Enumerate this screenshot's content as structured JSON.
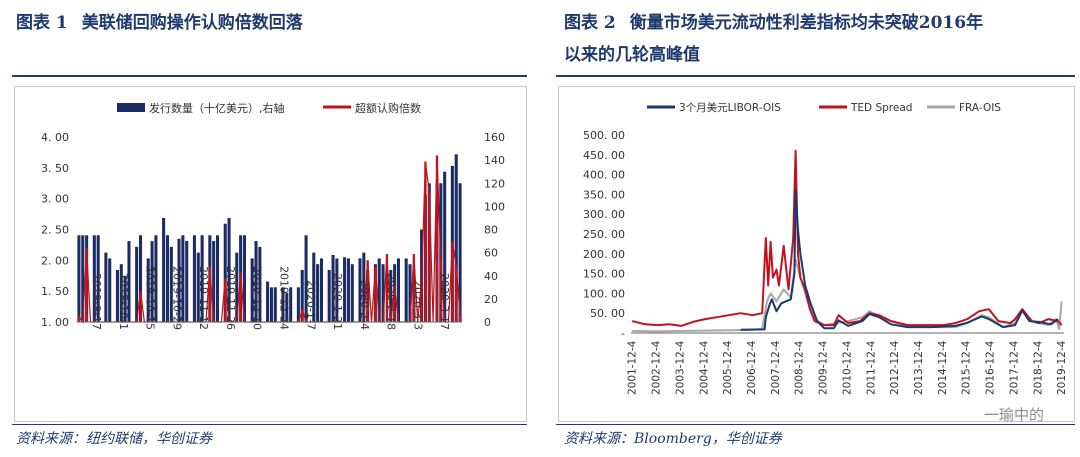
{
  "left": {
    "title_num": "图表 1",
    "title_text": "美联储回购操作认购倍数回落",
    "source": "资料来源：纽约联储，华创证券",
    "chart_data": {
      "type": "bar",
      "title": "",
      "legend": [
        "发行数量（十亿美元）,右轴",
        "超额认购倍数"
      ],
      "legend_position": "top",
      "colors": {
        "issuance": "#1b2b64",
        "ratio": "#c0141c"
      },
      "y_left": {
        "min": 1.0,
        "max": 4.0,
        "ticks": [
          "1. 00",
          "1. 50",
          "2. 00",
          "2. 50",
          "3. 00",
          "3. 50",
          "4. 00"
        ]
      },
      "y_right": {
        "min": 0,
        "max": 160,
        "ticks": [
          "0",
          "20",
          "40",
          "60",
          "80",
          "100",
          "120",
          "140",
          "160"
        ]
      },
      "x_tick_labels": [
        "2019-9-17",
        "2019-10-1",
        "2019-10-15",
        "2019-10-29",
        "2019-11-12",
        "2019-11-26",
        "2019-12-10",
        "2019-12-24",
        "2020-1-7",
        "2020-1-21",
        "2020-2-4",
        "2020-2-18",
        "2020-3-3",
        "2020-3-17"
      ],
      "series": [
        {
          "name": "发行数量（十亿美元）,右轴",
          "axis": "right",
          "values": [
            75,
            75,
            75,
            0,
            75,
            75,
            0,
            60,
            55,
            0,
            45,
            50,
            40,
            70,
            0,
            65,
            75,
            0,
            55,
            70,
            75,
            0,
            90,
            75,
            65,
            0,
            72,
            75,
            70,
            0,
            75,
            60,
            75,
            0,
            75,
            70,
            75,
            0,
            85,
            90,
            0,
            60,
            75,
            75,
            0,
            55,
            70,
            65,
            0,
            35,
            30,
            30,
            0,
            30,
            25,
            30,
            0,
            30,
            45,
            75,
            0,
            60,
            50,
            55,
            0,
            45,
            58,
            55,
            0,
            56,
            55,
            50,
            0,
            55,
            60,
            45,
            0,
            50,
            55,
            50,
            0,
            45,
            50,
            55,
            0,
            55,
            50,
            45,
            0,
            80,
            110,
            120,
            0,
            120,
            120,
            130,
            0,
            135,
            145,
            120
          ]
        },
        {
          "name": "超额认购倍数",
          "axis": "left",
          "values": [
            1.1,
            1.0,
            2.2,
            1.0,
            1.0,
            1.0,
            1.0,
            1.0,
            1.0,
            1.0,
            1.0,
            1.0,
            1.0,
            1.0,
            1.0,
            1.0,
            1.5,
            1.0,
            1.0,
            1.0,
            1.0,
            1.0,
            1.0,
            1.0,
            1.0,
            1.0,
            1.0,
            1.0,
            1.0,
            1.0,
            1.0,
            1.0,
            1.0,
            1.0,
            1.9,
            1.0,
            1.0,
            1.0,
            1.7,
            1.0,
            1.0,
            1.0,
            1.8,
            1.0,
            1.0,
            1.0,
            1.0,
            1.0,
            1.0,
            1.0,
            1.0,
            1.0,
            1.0,
            1.0,
            1.0,
            1.0,
            1.0,
            1.0,
            1.2,
            1.0,
            1.0,
            1.0,
            1.0,
            1.0,
            1.0,
            1.0,
            1.0,
            1.0,
            1.0,
            1.0,
            1.0,
            1.0,
            1.0,
            1.0,
            1.0,
            2.0,
            1.0,
            1.9,
            1.0,
            1.0,
            2.1,
            1.0,
            1.6,
            1.0,
            1.0,
            1.0,
            1.0,
            2.1,
            1.0,
            1.7,
            3.6,
            3.1,
            1.0,
            3.7,
            2.0,
            1.0,
            1.0,
            2.3,
            1.9,
            1.1
          ]
        }
      ]
    }
  },
  "right": {
    "title_num": "图表 2",
    "title_line1": "衡量市场美元流动性利差指标均未突破2016年",
    "title_line2": "以来的几轮高峰值",
    "source": "资料来源：Bloomberg，华创证券",
    "watermark": "一瑜中的",
    "chart_data": {
      "type": "line",
      "title": "",
      "legend": [
        "3个月美元LIBOR-OIS",
        "TED Spread",
        "FRA-OIS"
      ],
      "legend_position": "top",
      "ylim": [
        0,
        500
      ],
      "y_ticks": [
        "500. 00",
        "450. 00",
        "400. 00",
        "350. 00",
        "300. 00",
        "250. 00",
        "200. 00",
        "150. 00",
        "100. 00",
        "50. 00",
        "-"
      ],
      "x_tick_labels": [
        "2001-12-4",
        "2002-12-4",
        "2003-12-4",
        "2004-12-4",
        "2005-12-4",
        "2006-12-4",
        "2007-12-4",
        "2008-12-4",
        "2009-12-4",
        "2010-12-4",
        "2011-12-4",
        "2012-12-4",
        "2013-12-4",
        "2014-12-4",
        "2015-12-4",
        "2016-12-4",
        "2017-12-4",
        "2018-12-4",
        "2019-12-4"
      ],
      "series": [
        {
          "name": "3个月美元LIBOR-OIS",
          "color": "#1a3872",
          "start": 2006.5,
          "x": [
            2006.5,
            2007.5,
            2007.55,
            2007.7,
            2007.8,
            2008.0,
            2008.2,
            2008.4,
            2008.6,
            2008.75,
            2008.8,
            2008.9,
            2009.0,
            2009.2,
            2009.4,
            2009.7,
            2010.0,
            2010.4,
            2010.6,
            2011.0,
            2011.6,
            2011.9,
            2012.3,
            2012.8,
            2013.5,
            2014.5,
            2015.5,
            2016.0,
            2016.6,
            2016.9,
            2017.5,
            2018.0,
            2018.3,
            2018.6,
            2019.0,
            2019.5,
            2019.8
          ],
          "y": [
            8,
            9,
            40,
            70,
            85,
            55,
            75,
            80,
            85,
            150,
            360,
            260,
            200,
            120,
            80,
            30,
            12,
            12,
            32,
            18,
            30,
            48,
            40,
            22,
            15,
            15,
            18,
            26,
            42,
            35,
            15,
            20,
            57,
            30,
            28,
            22,
            35
          ]
        },
        {
          "name": "TED Spread",
          "color": "#c1121f",
          "x": [
            2001.95,
            2002.5,
            2003.0,
            2003.5,
            2004.0,
            2004.5,
            2005.0,
            2005.5,
            2006.0,
            2006.5,
            2007.0,
            2007.4,
            2007.55,
            2007.65,
            2007.75,
            2007.85,
            2008.0,
            2008.1,
            2008.3,
            2008.5,
            2008.7,
            2008.8,
            2008.9,
            2009.0,
            2009.2,
            2009.4,
            2009.6,
            2010.0,
            2010.4,
            2010.6,
            2011.0,
            2011.5,
            2011.9,
            2012.3,
            2012.8,
            2013.5,
            2014.5,
            2015.0,
            2015.5,
            2016.0,
            2016.5,
            2016.9,
            2017.3,
            2017.8,
            2018.0,
            2018.3,
            2018.7,
            2019.0,
            2019.4,
            2019.8,
            2019.95
          ],
          "y": [
            30,
            22,
            20,
            22,
            18,
            28,
            35,
            40,
            45,
            50,
            45,
            50,
            240,
            120,
            230,
            140,
            160,
            120,
            220,
            110,
            240,
            460,
            200,
            140,
            110,
            60,
            30,
            20,
            20,
            45,
            25,
            30,
            50,
            45,
            30,
            20,
            20,
            20,
            25,
            35,
            55,
            60,
            30,
            25,
            35,
            60,
            30,
            25,
            35,
            30,
            20
          ]
        },
        {
          "name": "FRA-OIS",
          "color": "#a8a8a8",
          "x": [
            2001.95,
            2003.0,
            2004.0,
            2005.0,
            2006.0,
            2007.0,
            2007.4,
            2007.6,
            2007.75,
            2008.0,
            2008.3,
            2008.6,
            2008.8,
            2009.0,
            2009.3,
            2009.6,
            2010.0,
            2010.5,
            2011.0,
            2011.6,
            2011.9,
            2012.5,
            2013.5,
            2014.5,
            2015.5,
            2016.0,
            2016.6,
            2016.9,
            2017.5,
            2018.0,
            2018.3,
            2018.7,
            2019.0,
            2019.4,
            2019.7,
            2019.85,
            2019.95
          ],
          "y": [
            5,
            4,
            5,
            6,
            7,
            8,
            10,
            80,
            100,
            80,
            110,
            90,
            185,
            140,
            80,
            35,
            20,
            25,
            30,
            40,
            55,
            35,
            18,
            15,
            15,
            25,
            45,
            40,
            15,
            25,
            60,
            30,
            25,
            20,
            35,
            10,
            80
          ]
        }
      ]
    }
  }
}
